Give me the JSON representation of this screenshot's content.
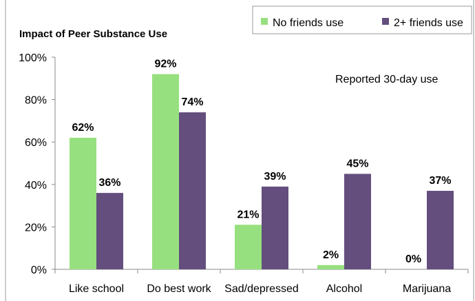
{
  "chart_data": {
    "type": "bar",
    "title": "Impact of Peer Substance Use",
    "annotation": "Reported 30-day use",
    "categories": [
      "Like school",
      "Do best work",
      "Sad/depressed",
      "Alcohol",
      "Marijuana"
    ],
    "series": [
      {
        "name": "No friends use",
        "color": "#97e07f",
        "values": [
          62,
          92,
          21,
          2,
          0
        ],
        "labels": [
          "62%",
          "92%",
          "21%",
          "2%",
          "0%"
        ]
      },
      {
        "name": "2+ friends use",
        "color": "#634e7d",
        "values": [
          36,
          74,
          39,
          45,
          37
        ],
        "labels": [
          "36%",
          "74%",
          "39%",
          "45%",
          "37%"
        ]
      }
    ],
    "ylim": [
      0,
      100
    ],
    "yticks": [
      0,
      20,
      40,
      60,
      80,
      100
    ],
    "ytick_labels": [
      "0%",
      "20%",
      "40%",
      "60%",
      "80%",
      "100%"
    ],
    "xlabel": "",
    "ylabel": "",
    "grid": false,
    "legend_position": "top-right"
  }
}
